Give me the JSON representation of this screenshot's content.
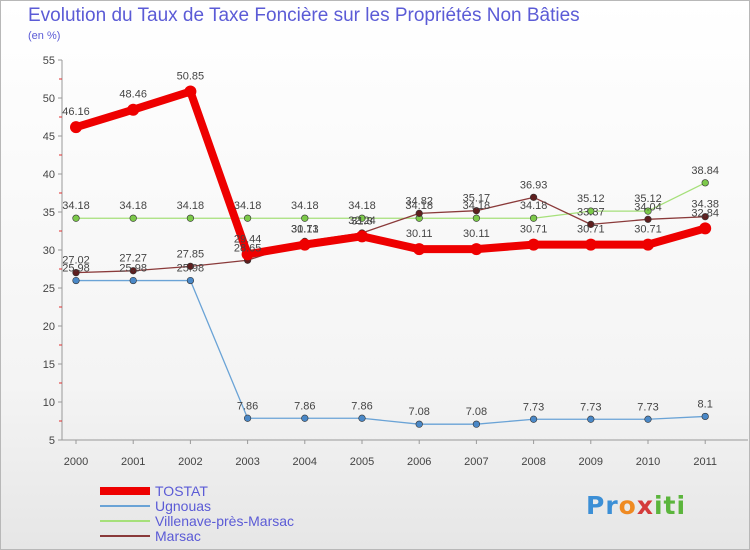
{
  "chart_data": {
    "type": "line",
    "title": "Evolution du Taux de Taxe Foncière sur les Propriétés Non Bâties",
    "subtitle": "(en %)",
    "xlabel": "",
    "ylabel": "",
    "ylim": [
      5,
      55
    ],
    "yticks": [
      "5",
      "10",
      "15",
      "20",
      "25",
      "30",
      "35",
      "40",
      "45",
      "50",
      "55"
    ],
    "categories": [
      "2000",
      "2001",
      "2002",
      "2003",
      "2004",
      "2005",
      "2006",
      "2007",
      "2008",
      "2009",
      "2010",
      "2011"
    ],
    "grid": false,
    "legend_position": "bottom-left",
    "series": [
      {
        "name": "Ugnouas",
        "color": "#6aa3d6",
        "marker_color": "#4a88c7",
        "values": [
          25.98,
          25.98,
          25.98,
          7.86,
          7.86,
          7.86,
          7.08,
          7.08,
          7.73,
          7.73,
          7.73,
          8.1
        ],
        "labels": [
          "25.98",
          "25.98",
          "25.98",
          "7.86",
          "7.86",
          "7.86",
          "7.08",
          "7.08",
          "7.73",
          "7.73",
          "7.73",
          "8.1"
        ]
      },
      {
        "name": "Villenave-près-Marsac",
        "color": "#a6e07a",
        "marker_color": "#7cc94a",
        "values": [
          34.18,
          34.18,
          34.18,
          34.18,
          34.18,
          34.18,
          34.18,
          34.18,
          34.18,
          35.12,
          35.12,
          38.84
        ],
        "labels": [
          "34.18",
          "34.18",
          "34.18",
          "34.18",
          "34.18",
          "34.18",
          "34.18",
          "34.18",
          "34.18",
          "35.12",
          "35.12",
          "38.84"
        ]
      },
      {
        "name": "Marsac",
        "color": "#8a3a3a",
        "marker_color": "#5e1e1e",
        "values": [
          27.02,
          27.27,
          27.85,
          28.65,
          31.13,
          32.24,
          34.82,
          35.17,
          36.93,
          33.37,
          34.04,
          34.38
        ],
        "labels": [
          "27.02",
          "27.27",
          "27.85",
          "28.65",
          "31.13",
          "32.24",
          "34.82",
          "35.17",
          "36.93",
          "33.37",
          "34.04",
          "34.38"
        ]
      },
      {
        "name": "TOSTAT",
        "color": "#ee0000",
        "marker_color": "#ee0000",
        "values": [
          46.16,
          48.46,
          50.85,
          29.44,
          30.71,
          31.8,
          30.11,
          30.11,
          30.71,
          30.71,
          30.71,
          32.84
        ],
        "labels": [
          "46.16",
          "48.46",
          "50.85",
          "29.44",
          "30.71",
          "31.8",
          "30.11",
          "30.11",
          "30.71",
          "30.71",
          "30.71",
          "32.84"
        ]
      }
    ],
    "legend": [
      "TOSTAT",
      "Ugnouas",
      "Villenave-près-Marsac",
      "Marsac"
    ]
  },
  "brand": {
    "logo_parts": [
      "Pr",
      "o",
      "x",
      "iti"
    ]
  }
}
